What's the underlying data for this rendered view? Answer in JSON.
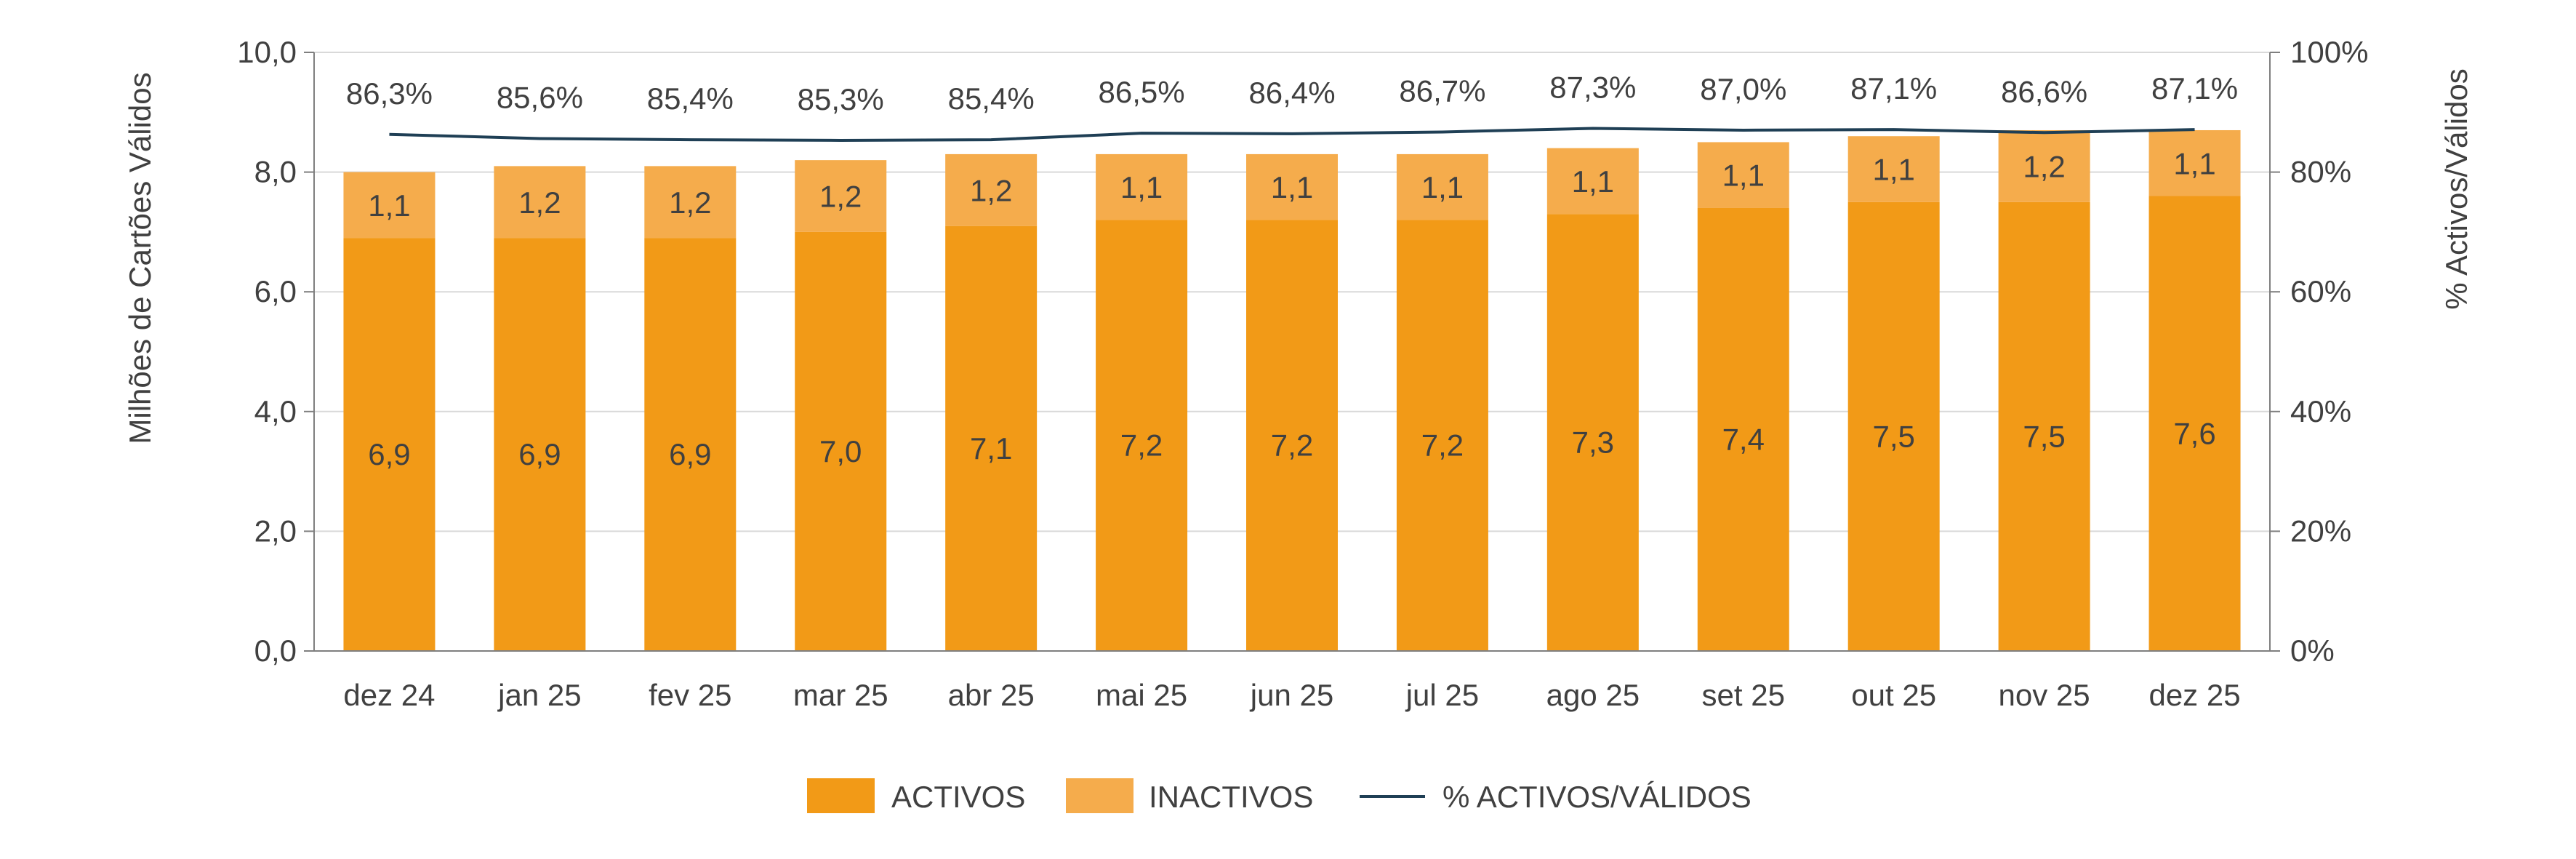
{
  "chart_data": {
    "type": "bar",
    "categories": [
      "dez 24",
      "jan 25",
      "fev 25",
      "mar 25",
      "abr 25",
      "mai 25",
      "jun 25",
      "jul 25",
      "ago 25",
      "set 25",
      "out 25",
      "nov 25",
      "dez 25"
    ],
    "series": [
      {
        "name": "ACTIVOS",
        "values": [
          6.9,
          6.9,
          6.9,
          7.0,
          7.1,
          7.2,
          7.2,
          7.2,
          7.3,
          7.4,
          7.5,
          7.5,
          7.6
        ],
        "labels": [
          "6,9",
          "6,9",
          "6,9",
          "7,0",
          "7,1",
          "7,2",
          "7,2",
          "7,2",
          "7,3",
          "7,4",
          "7,5",
          "7,5",
          "7,6"
        ],
        "color": "#F29A17"
      },
      {
        "name": "INACTIVOS",
        "values": [
          1.1,
          1.2,
          1.2,
          1.2,
          1.2,
          1.1,
          1.1,
          1.1,
          1.1,
          1.1,
          1.1,
          1.2,
          1.1
        ],
        "labels": [
          "1,1",
          "1,2",
          "1,2",
          "1,2",
          "1,2",
          "1,1",
          "1,1",
          "1,1",
          "1,1",
          "1,1",
          "1,1",
          "1,2",
          "1,1"
        ],
        "color": "#F5AC4C"
      },
      {
        "name": "% ACTIVOS/VÁLIDOS",
        "type": "line",
        "axis": "right",
        "values": [
          86.3,
          85.6,
          85.4,
          85.3,
          85.4,
          86.5,
          86.4,
          86.7,
          87.3,
          87.0,
          87.1,
          86.6,
          87.1
        ],
        "labels": [
          "86,3%",
          "85,6%",
          "85,4%",
          "85,3%",
          "85,4%",
          "86,5%",
          "86,4%",
          "86,7%",
          "87,3%",
          "87,0%",
          "87,1%",
          "86,6%",
          "87,1%"
        ],
        "color": "#1F3F55"
      }
    ],
    "ylabel": "Milhões de Cartões Válidos",
    "y2label": "% Activos/Válidos",
    "ylim": [
      0,
      10
    ],
    "y2lim": [
      0,
      100
    ],
    "yticks": [
      "0,0",
      "2,0",
      "4,0",
      "6,0",
      "8,0",
      "10,0"
    ],
    "y2ticks": [
      "0%",
      "20%",
      "40%",
      "60%",
      "80%",
      "100%"
    ],
    "grid": true,
    "legend_position": "bottom"
  },
  "legend": {
    "items": [
      "ACTIVOS",
      "INACTIVOS",
      "% ACTIVOS/VÁLIDOS"
    ]
  }
}
